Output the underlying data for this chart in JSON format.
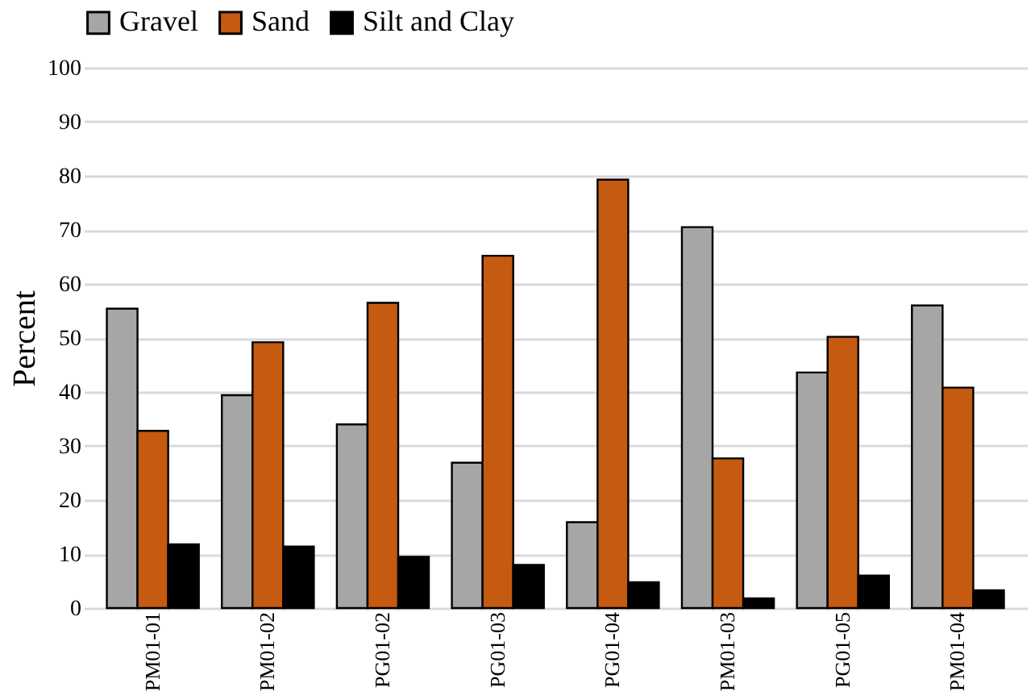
{
  "chart_data": {
    "type": "bar",
    "ylabel": "Percent",
    "categories": [
      "PM01-01",
      "PM01-02",
      "PG01-02",
      "PG01-03",
      "PG01-04",
      "PM01-03",
      "PG01-05",
      "PM01-04"
    ],
    "series": [
      {
        "name": "Gravel",
        "color": "#a6a6a6",
        "values": [
          55.4,
          39.4,
          34,
          26.9,
          15.9,
          70.5,
          43.6,
          56
        ]
      },
      {
        "name": "Sand",
        "color": "#c55a11",
        "values": [
          32.8,
          49.2,
          56.5,
          65.2,
          79.3,
          27.7,
          50.2,
          40.8
        ]
      },
      {
        "name": "Silt and Clay",
        "color": "#000000",
        "values": [
          11.8,
          11.4,
          9.5,
          8.0,
          4.8,
          1.8,
          6.0,
          3.3
        ]
      }
    ],
    "ylim": [
      0,
      100
    ],
    "yticks": [
      0,
      10,
      20,
      30,
      40,
      50,
      60,
      70,
      80,
      90,
      100
    ],
    "grid": "y",
    "legend": "top"
  }
}
